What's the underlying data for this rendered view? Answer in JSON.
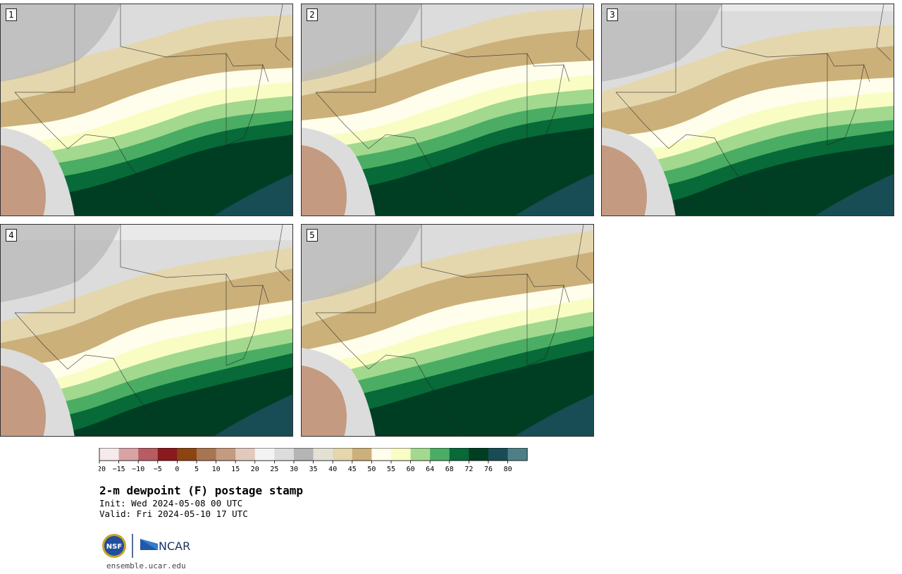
{
  "title": "2-m dewpoint (F) postage stamp",
  "init": "Init: Wed 2024-05-08 00 UTC",
  "valid": "Valid: Fri 2024-05-10 17 UTC",
  "members": [
    "1",
    "2",
    "3",
    "4",
    "5"
  ],
  "colorbar": {
    "ticks": [
      "−20",
      "−15",
      "−10",
      "−5",
      "0",
      "5",
      "10",
      "15",
      "20",
      "25",
      "30",
      "35",
      "40",
      "45",
      "50",
      "55",
      "60",
      "64",
      "68",
      "72",
      "76",
      "80"
    ],
    "colors": [
      "#f6eaea",
      "#d9a2a5",
      "#b65d64",
      "#8b1a1e",
      "#8c4510",
      "#a97452",
      "#c49a80",
      "#e3c9bc",
      "#f3f3f3",
      "#dcdcdc",
      "#b5b5b5",
      "#e3e1d3",
      "#e4d7ae",
      "#cbb07a",
      "#fffdeb",
      "#f9fdc4",
      "#a2d98f",
      "#4aad63",
      "#076a38",
      "#003e23",
      "#184d55",
      "#4f7f86"
    ]
  },
  "logos": {
    "nsf": "NSF",
    "ncar": "NCAR"
  },
  "url": "ensemble.ucar.edu"
}
